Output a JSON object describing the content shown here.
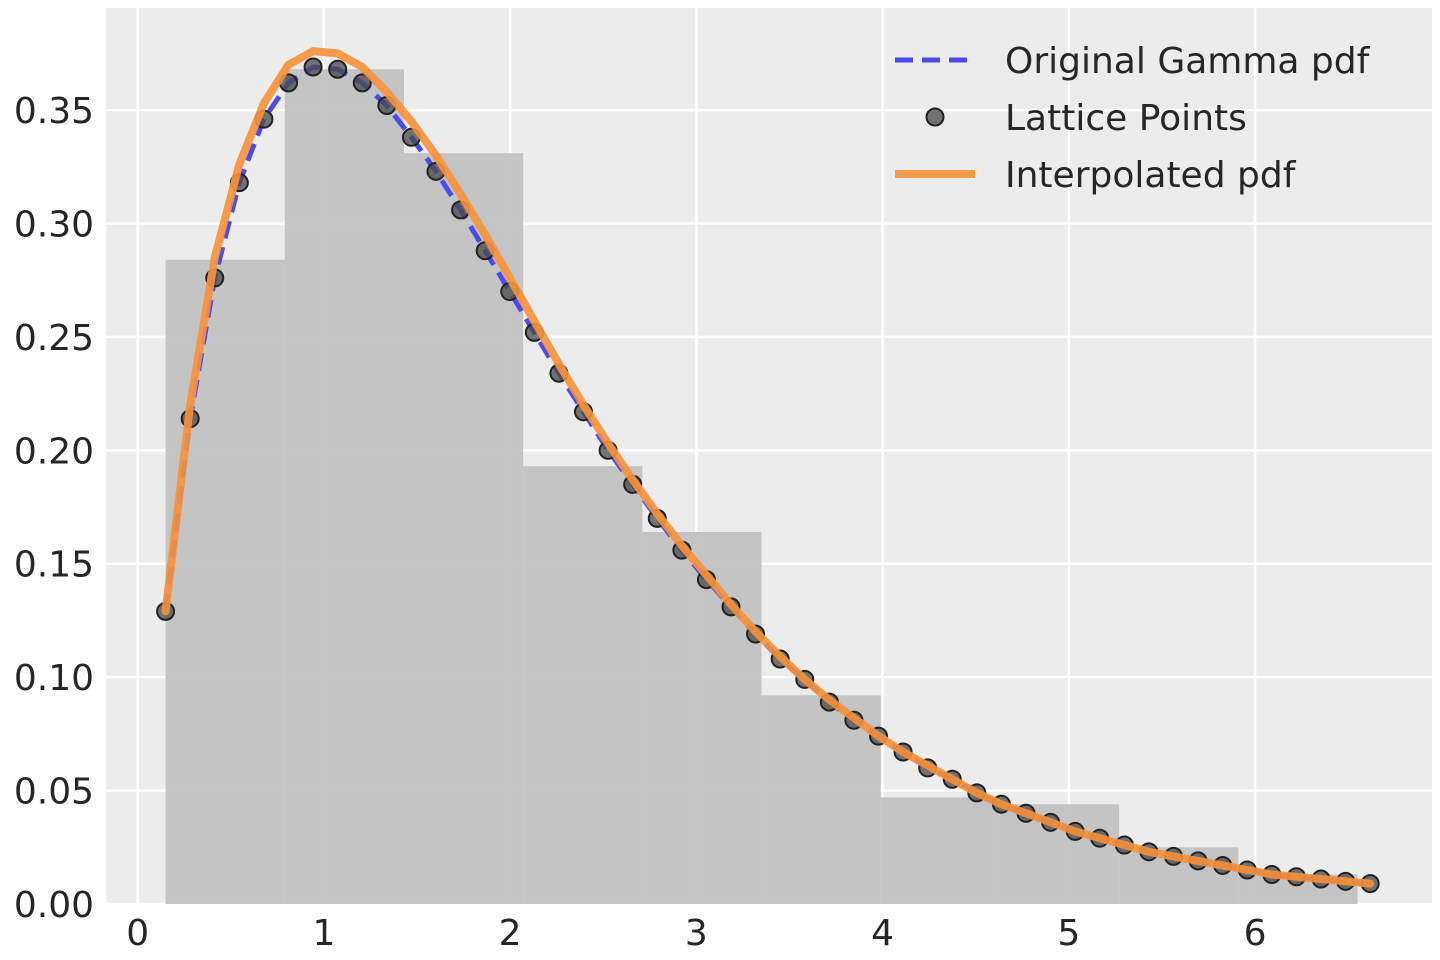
{
  "chart_data": {
    "type": "line",
    "style": "arviz-darkgrid",
    "background_color": "#ececec",
    "grid": true,
    "grid_color": "#ffffff",
    "legend_position": "top-right",
    "xlim": [
      -0.17,
      6.95
    ],
    "ylim": [
      0,
      0.395
    ],
    "xticks": [
      0,
      1,
      2,
      3,
      4,
      5,
      6
    ],
    "xtick_labels": [
      "0",
      "1",
      "2",
      "3",
      "4",
      "5",
      "6"
    ],
    "yticks": [
      0.0,
      0.05,
      0.1,
      0.15,
      0.2,
      0.25,
      0.3,
      0.35
    ],
    "ytick_labels": [
      "0.00",
      "0.05",
      "0.10",
      "0.15",
      "0.20",
      "0.25",
      "0.30",
      "0.35"
    ],
    "histogram": {
      "color": "#c0c0c0",
      "bin_edges": [
        0.15,
        0.79,
        1.43,
        2.07,
        2.71,
        3.35,
        3.99,
        4.63,
        5.27,
        5.91,
        6.55
      ],
      "heights": [
        0.284,
        0.368,
        0.331,
        0.193,
        0.164,
        0.092,
        0.047,
        0.044,
        0.025,
        0.013
      ]
    },
    "series": [
      {
        "name": "Original Gamma pdf",
        "kind": "line",
        "color": "#4b4bea",
        "dashed": true,
        "x": [
          0.15,
          0.282,
          0.414,
          0.546,
          0.678,
          0.81,
          0.942,
          1.074,
          1.206,
          1.338,
          1.47,
          1.602,
          1.734,
          1.866,
          1.998,
          2.13,
          2.262,
          2.394,
          2.526,
          2.658,
          2.79,
          2.922,
          3.054,
          3.186,
          3.318,
          3.45,
          3.582,
          3.714,
          3.846,
          3.978,
          4.11,
          4.242,
          4.374,
          4.506,
          4.638,
          4.77,
          4.902,
          5.034,
          5.166,
          5.298,
          5.43,
          5.562,
          5.694,
          5.826,
          5.958,
          6.09,
          6.222,
          6.354,
          6.486,
          6.618
        ],
        "y": [
          0.129,
          0.214,
          0.276,
          0.318,
          0.346,
          0.362,
          0.369,
          0.368,
          0.362,
          0.352,
          0.338,
          0.323,
          0.306,
          0.288,
          0.27,
          0.252,
          0.234,
          0.217,
          0.2,
          0.185,
          0.17,
          0.156,
          0.143,
          0.131,
          0.119,
          0.108,
          0.099,
          0.089,
          0.081,
          0.074,
          0.067,
          0.06,
          0.055,
          0.049,
          0.044,
          0.04,
          0.036,
          0.032,
          0.029,
          0.026,
          0.023,
          0.021,
          0.019,
          0.017,
          0.015,
          0.013,
          0.012,
          0.011,
          0.01,
          0.009
        ]
      },
      {
        "name": "Lattice Points",
        "kind": "scatter",
        "color": "#4a4a4a",
        "x": [
          0.15,
          0.282,
          0.414,
          0.546,
          0.678,
          0.81,
          0.942,
          1.074,
          1.206,
          1.338,
          1.47,
          1.602,
          1.734,
          1.866,
          1.998,
          2.13,
          2.262,
          2.394,
          2.526,
          2.658,
          2.79,
          2.922,
          3.054,
          3.186,
          3.318,
          3.45,
          3.582,
          3.714,
          3.846,
          3.978,
          4.11,
          4.242,
          4.374,
          4.506,
          4.638,
          4.77,
          4.902,
          5.034,
          5.166,
          5.298,
          5.43,
          5.562,
          5.694,
          5.826,
          5.958,
          6.09,
          6.222,
          6.354,
          6.486,
          6.618
        ],
        "y": [
          0.129,
          0.214,
          0.276,
          0.318,
          0.346,
          0.362,
          0.369,
          0.368,
          0.362,
          0.352,
          0.338,
          0.323,
          0.306,
          0.288,
          0.27,
          0.252,
          0.234,
          0.217,
          0.2,
          0.185,
          0.17,
          0.156,
          0.143,
          0.131,
          0.119,
          0.108,
          0.099,
          0.089,
          0.081,
          0.074,
          0.067,
          0.06,
          0.055,
          0.049,
          0.044,
          0.04,
          0.036,
          0.032,
          0.029,
          0.026,
          0.023,
          0.021,
          0.019,
          0.017,
          0.015,
          0.013,
          0.012,
          0.011,
          0.01,
          0.009
        ]
      },
      {
        "name": "Interpolated pdf",
        "kind": "line",
        "color": "#f7923a",
        "dashed": false,
        "x": [
          0.15,
          0.282,
          0.414,
          0.546,
          0.678,
          0.81,
          0.942,
          1.074,
          1.206,
          1.338,
          1.47,
          1.602,
          1.734,
          1.866,
          1.998,
          2.13,
          2.262,
          2.394,
          2.526,
          2.658,
          2.79,
          2.922,
          3.054,
          3.186,
          3.318,
          3.45,
          3.582,
          3.714,
          3.846,
          3.978,
          4.11,
          4.242,
          4.374,
          4.506,
          4.638,
          4.77,
          4.902,
          5.034,
          5.166,
          5.298,
          5.43,
          5.562,
          5.694,
          5.826,
          5.958,
          6.09,
          6.222,
          6.354,
          6.486,
          6.618
        ],
        "y": [
          0.129,
          0.22,
          0.285,
          0.326,
          0.353,
          0.37,
          0.376,
          0.375,
          0.369,
          0.358,
          0.345,
          0.33,
          0.313,
          0.295,
          0.276,
          0.257,
          0.238,
          0.22,
          0.203,
          0.187,
          0.172,
          0.158,
          0.145,
          0.132,
          0.12,
          0.109,
          0.099,
          0.09,
          0.082,
          0.074,
          0.067,
          0.061,
          0.055,
          0.049,
          0.044,
          0.04,
          0.036,
          0.032,
          0.029,
          0.026,
          0.023,
          0.021,
          0.019,
          0.017,
          0.015,
          0.013,
          0.012,
          0.011,
          0.01,
          0.009
        ]
      }
    ],
    "legend": [
      "Original Gamma pdf",
      "Lattice Points",
      "Interpolated pdf"
    ]
  }
}
